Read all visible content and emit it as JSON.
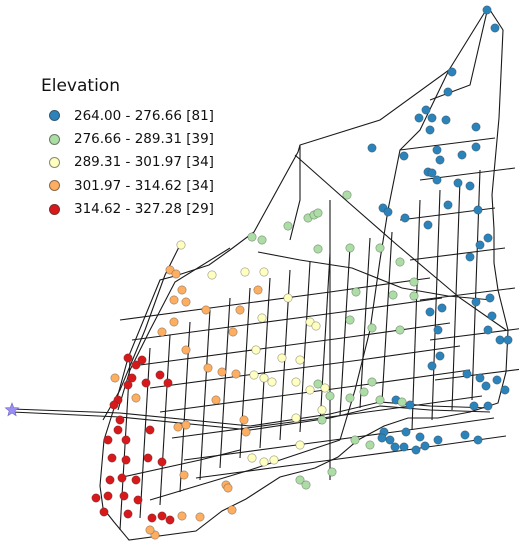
{
  "legend": {
    "title": "Elevation",
    "classes": [
      {
        "label": "264.00 - 276.66 [81]",
        "color": "#2b83ba"
      },
      {
        "label": "276.66 - 289.31 [39]",
        "color": "#abdda4"
      },
      {
        "label": "289.31 - 301.97 [34]",
        "color": "#ffffbf"
      },
      {
        "label": "301.97 - 314.62 [34]",
        "color": "#fdae61"
      },
      {
        "label": "314.62 - 327.28 [29]",
        "color": "#d7191c"
      }
    ]
  },
  "symbols": {
    "reservoir": {
      "icon": "star-icon",
      "color": "#9a8ff0"
    },
    "pipe_color": "#1a1a1a"
  }
}
